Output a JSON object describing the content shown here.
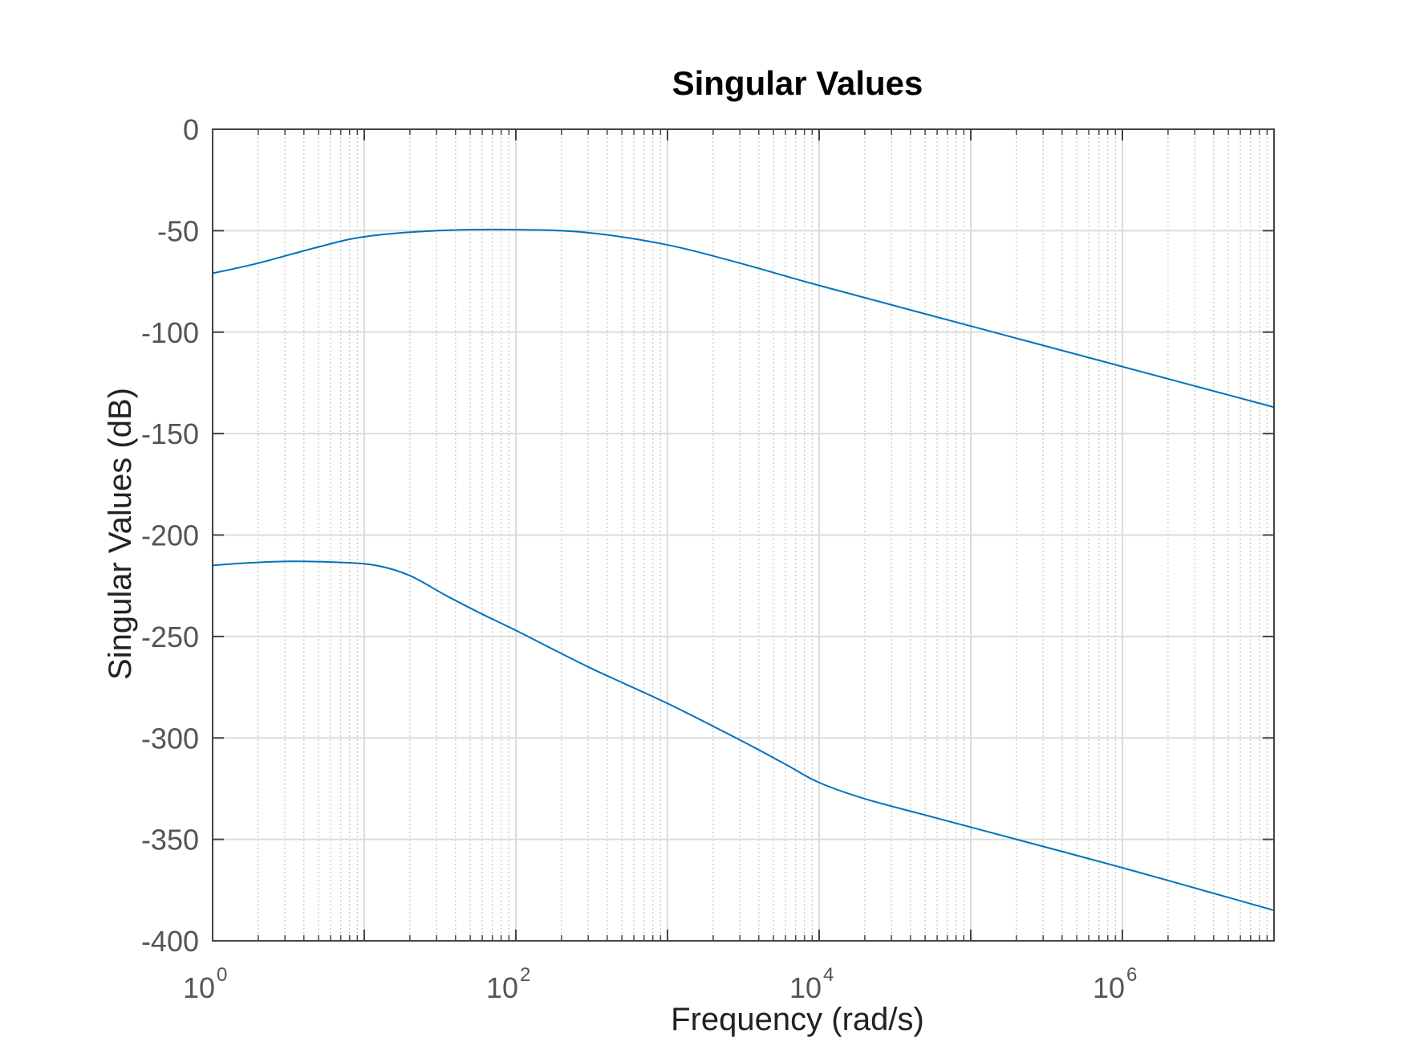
{
  "chart_data": {
    "type": "line",
    "title": "Singular Values",
    "xlabel": "Frequency (rad/s)",
    "ylabel": "Singular Values (dB)",
    "x_scale": "log",
    "xlim": [
      1,
      10000000
    ],
    "ylim": [
      -400,
      0
    ],
    "x_ticks": [
      {
        "base": "10",
        "exp": "0",
        "value": 1
      },
      {
        "base": "10",
        "exp": "2",
        "value": 100
      },
      {
        "base": "10",
        "exp": "4",
        "value": 10000
      },
      {
        "base": "10",
        "exp": "6",
        "value": 1000000
      }
    ],
    "y_ticks": [
      "0",
      "-50",
      "-100",
      "-150",
      "-200",
      "-250",
      "-300",
      "-350",
      "-400"
    ],
    "grid": true,
    "minor_grid": true,
    "line_color": "#0072BD",
    "series": [
      {
        "x": [
          1,
          2,
          5,
          10,
          30,
          100,
          300,
          1000,
          3000,
          10000,
          100000,
          1000000,
          10000000
        ],
        "values": [
          -71,
          -66,
          -58,
          -53,
          -50,
          -49.5,
          -51,
          -57,
          -66,
          -77,
          -97,
          -117,
          -137
        ]
      },
      {
        "x": [
          1,
          1.5,
          3,
          7,
          12,
          20,
          35,
          60,
          100,
          300,
          1000,
          3000,
          6000,
          10000,
          20000,
          50000,
          100000,
          1000000,
          10000000
        ],
        "values": [
          -215,
          -214,
          -213,
          -213.5,
          -215,
          -220,
          -230,
          -239,
          -247,
          -265,
          -283,
          -301,
          -313,
          -322,
          -330,
          -338,
          -344,
          -364,
          -385
        ]
      }
    ]
  }
}
